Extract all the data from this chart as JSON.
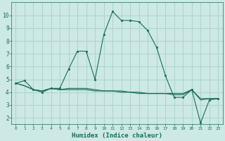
{
  "xlabel": "Humidex (Indice chaleur)",
  "background_color": "#cce9e5",
  "grid_color": "#b0d5d0",
  "line_color": "#1a6b5a",
  "series1_x": [
    0,
    1,
    2,
    3,
    4,
    5,
    6,
    7,
    8,
    9,
    10,
    11,
    12,
    13,
    14,
    15,
    16,
    17,
    18,
    19,
    20,
    21,
    22,
    23
  ],
  "series1_y": [
    4.7,
    4.9,
    4.2,
    4.0,
    4.3,
    4.3,
    5.8,
    7.2,
    7.2,
    5.0,
    8.5,
    10.3,
    9.6,
    9.6,
    9.5,
    8.8,
    7.5,
    5.3,
    3.6,
    3.6,
    4.2,
    1.6,
    3.4,
    3.5
  ],
  "series2_x": [
    0,
    1,
    2,
    3,
    4,
    5,
    6,
    7,
    8,
    9,
    10,
    11,
    12,
    13,
    14,
    15,
    16,
    17,
    18,
    19,
    20,
    21,
    22,
    23
  ],
  "series2_y": [
    4.7,
    4.5,
    4.2,
    4.1,
    4.3,
    4.2,
    4.2,
    4.2,
    4.2,
    4.1,
    4.1,
    4.1,
    4.0,
    4.0,
    3.9,
    3.9,
    3.9,
    3.9,
    3.8,
    3.8,
    4.2,
    3.4,
    3.5,
    3.5
  ],
  "series3_x": [
    0,
    1,
    2,
    3,
    4,
    5,
    6,
    7,
    8,
    9,
    10,
    11,
    12,
    13,
    14,
    15,
    16,
    17,
    18,
    19,
    20,
    21,
    22,
    23
  ],
  "series3_y": [
    4.7,
    4.5,
    4.2,
    4.1,
    4.3,
    4.2,
    4.3,
    4.3,
    4.3,
    4.2,
    4.1,
    4.1,
    4.1,
    4.0,
    4.0,
    3.9,
    3.9,
    3.9,
    3.9,
    3.9,
    4.2,
    3.5,
    3.5,
    3.5
  ],
  "ylim": [
    1.5,
    11.0
  ],
  "xlim": [
    -0.5,
    23.5
  ],
  "yticks": [
    2,
    3,
    4,
    5,
    6,
    7,
    8,
    9,
    10
  ],
  "xticks": [
    0,
    1,
    2,
    3,
    4,
    5,
    6,
    7,
    8,
    9,
    10,
    11,
    12,
    13,
    14,
    15,
    16,
    17,
    18,
    19,
    20,
    21,
    22,
    23
  ],
  "marker_size": 2.0,
  "line_width": 0.8
}
